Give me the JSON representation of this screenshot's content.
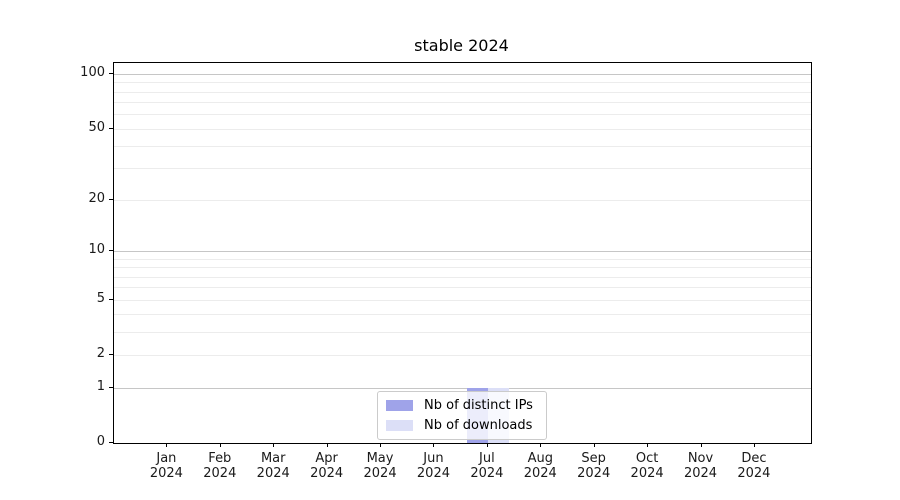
{
  "chart_data": {
    "type": "bar",
    "title": "stable 2024",
    "months": [
      "Jan",
      "Feb",
      "Mar",
      "Apr",
      "May",
      "Jun",
      "Jul",
      "Aug",
      "Sep",
      "Oct",
      "Nov",
      "Dec"
    ],
    "year": "2024",
    "series": [
      {
        "name": "Nb of distinct IPs",
        "color": "#9fa3e9",
        "values": [
          0,
          0,
          0,
          0,
          0,
          0,
          1,
          0,
          0,
          0,
          0,
          0
        ]
      },
      {
        "name": "Nb of downloads",
        "color": "#dcdff7",
        "values": [
          0,
          0,
          0,
          0,
          0,
          0,
          1,
          0,
          0,
          0,
          0,
          0
        ]
      }
    ],
    "y_scale": "log1p",
    "ylim": [
      0,
      115
    ],
    "y_ticks": [
      0,
      1,
      2,
      5,
      10,
      20,
      50,
      100
    ],
    "y_major_gridlines": [
      1,
      10,
      100
    ],
    "y_minor_gridlines": [
      3,
      4,
      6,
      7,
      8,
      9,
      30,
      40,
      60,
      70,
      80,
      90
    ],
    "grid": true,
    "legend_position": "lower center",
    "colors": {
      "major_grid": "#c6c6c6",
      "minor_grid": "#ececec",
      "spine": "#000000",
      "background": "#ffffff"
    }
  }
}
